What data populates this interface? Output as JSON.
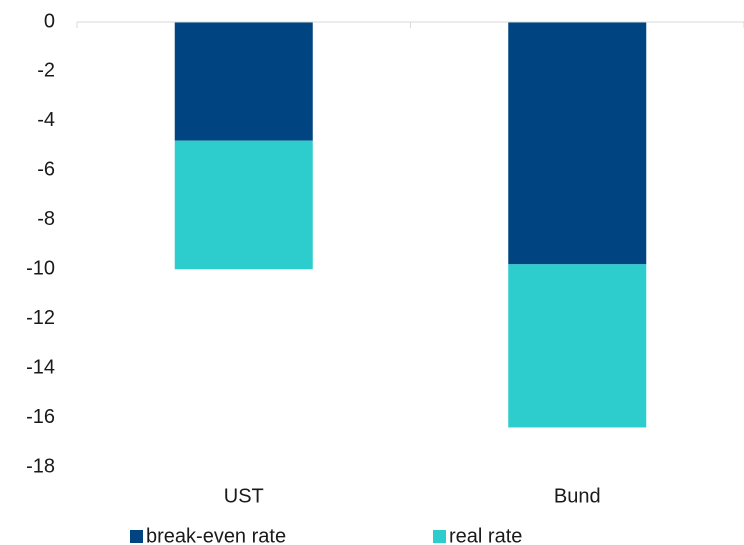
{
  "chart_data": {
    "type": "stacked_bar",
    "categories": [
      "UST",
      "Bund"
    ],
    "series": [
      {
        "name": "break-even rate",
        "color": "#004481",
        "values": [
          -4.8,
          -9.8
        ]
      },
      {
        "name": "real rate",
        "color": "#2dcccd",
        "values": [
          -5.2,
          -6.6
        ]
      }
    ],
    "ylim": [
      -18,
      0
    ],
    "yticks": [
      0,
      -2,
      -4,
      -6,
      -8,
      -10,
      -12,
      -14,
      -16,
      -18
    ]
  }
}
